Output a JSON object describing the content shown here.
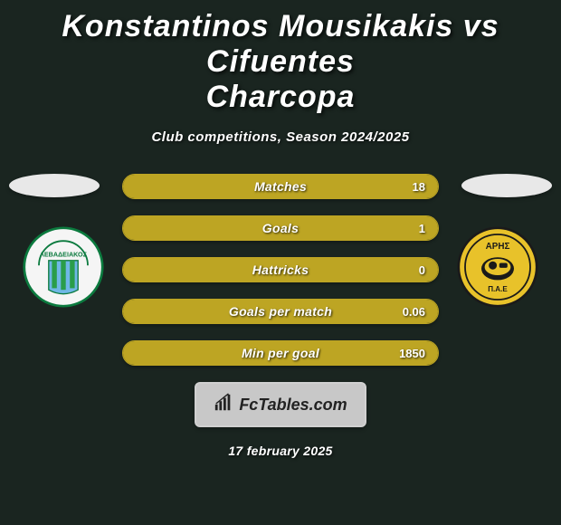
{
  "title_line1": "Konstantinos Mousikakis vs Cifuentes",
  "title_line2": "Charcopa",
  "subtitle": "Club competitions, Season 2024/2025",
  "date": "17 february 2025",
  "colors": {
    "background": "#1a2520",
    "accent": "#bda523",
    "bar_fill": "#bda523",
    "bar_border": "#bda523",
    "ellipse_left": "#e8e8e8",
    "ellipse_right": "#e8e8e8"
  },
  "stats": [
    {
      "label": "Matches",
      "value": "18",
      "fill_pct": 100
    },
    {
      "label": "Goals",
      "value": "1",
      "fill_pct": 100
    },
    {
      "label": "Hattricks",
      "value": "0",
      "fill_pct": 100
    },
    {
      "label": "Goals per match",
      "value": "0.06",
      "fill_pct": 100
    },
    {
      "label": "Min per goal",
      "value": "1850",
      "fill_pct": 100
    }
  ],
  "badges": {
    "left": {
      "name": "levadiakos-badge",
      "text": "ΛΕΒΑΔΕΙΑΚΟΣ",
      "primary": "#0b7a3e",
      "secondary": "#6fb7e6",
      "stripe": "#2a9d4a"
    },
    "right": {
      "name": "aris-badge",
      "text": "ΑΡΗΣ",
      "sub": "Π.Α.Ε",
      "primary": "#e8c22a",
      "secondary": "#1a1a1a"
    }
  },
  "footer": {
    "brand": "FcTables.com"
  }
}
